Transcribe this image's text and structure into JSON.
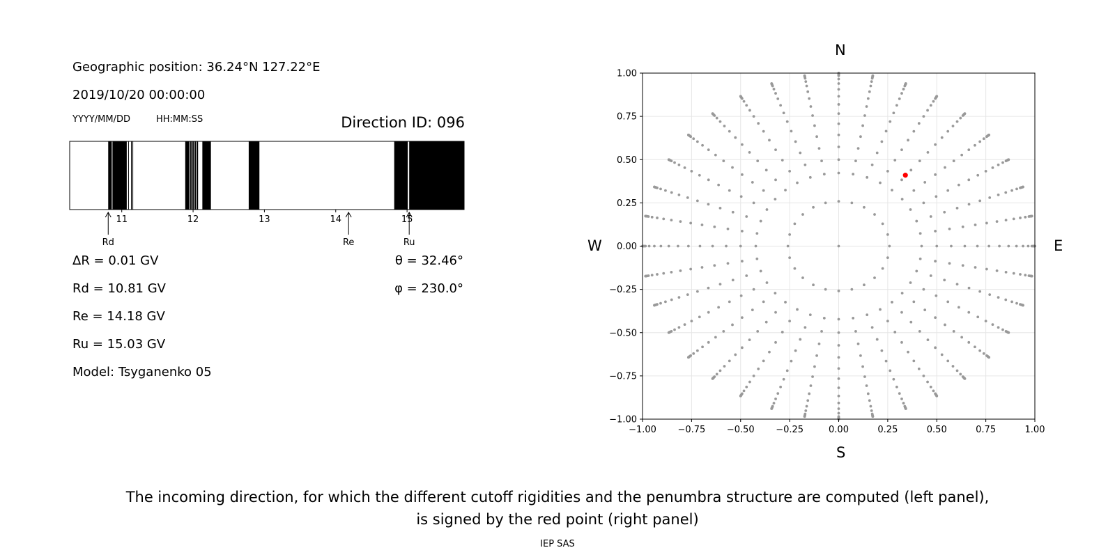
{
  "left_panel": {
    "position_line": "Geographic position: 36.24°N 127.22°E",
    "datetime_line": "2019/10/20 00:00:00",
    "date_format_label": "YYYY/MM/DD",
    "time_format_label": "HH:MM:SS",
    "direction_id": "Direction ID: 096",
    "params_left": [
      "ΔR = 0.01 GV",
      "Rd = 10.81 GV",
      "Re = 14.18 GV",
      "Ru = 15.03 GV",
      "Model: Tsyganenko 05"
    ],
    "params_right": [
      "θ = 32.46°",
      "φ = 230.0°"
    ]
  },
  "right_panel": {
    "north_label": "N",
    "south_label": "S",
    "west_label": "W",
    "east_label": "E"
  },
  "caption_line1": "The incoming direction, for which the different cutoff rigidities and the penumbra structure are computed (left panel),",
  "caption_line2": "is signed by the red point (right panel)",
  "credit": "IEP SAS",
  "chart_data": [
    {
      "type": "bar",
      "description": "penumbra structure (black = forbidden, white = allowed)",
      "xlim": [
        10.27,
        15.8
      ],
      "xticks": [
        11,
        12,
        13,
        14,
        15
      ],
      "tick_labels": [
        "11",
        "12",
        "13",
        "14",
        "15"
      ],
      "forbidden_bands": [
        [
          10.81,
          10.86
        ],
        [
          10.87,
          11.07
        ],
        [
          11.09,
          11.1
        ],
        [
          11.13,
          11.14
        ],
        [
          11.15,
          11.16
        ],
        [
          11.89,
          11.95
        ],
        [
          11.96,
          11.98
        ],
        [
          11.99,
          12.01
        ],
        [
          12.02,
          12.04
        ],
        [
          12.05,
          12.07
        ],
        [
          12.13,
          12.25
        ],
        [
          12.78,
          12.93
        ],
        [
          14.82,
          15.01
        ],
        [
          15.03,
          15.8
        ]
      ],
      "markers": [
        {
          "label": "Rd",
          "value": 10.81
        },
        {
          "label": "Re",
          "value": 14.18
        },
        {
          "label": "Ru",
          "value": 15.03
        }
      ]
    },
    {
      "type": "scatter",
      "xlim": [
        -1.0,
        1.0
      ],
      "ylim": [
        -1.0,
        1.0
      ],
      "xticks": [
        -1.0,
        -0.75,
        -0.5,
        -0.25,
        0.0,
        0.25,
        0.5,
        0.75,
        1.0
      ],
      "yticks": [
        -1.0,
        -0.75,
        -0.5,
        -0.25,
        0.0,
        0.25,
        0.5,
        0.75,
        1.0
      ],
      "xtick_labels": [
        "−1.00",
        "−0.75",
        "−0.50",
        "−0.25",
        "0.00",
        "0.25",
        "0.50",
        "0.75",
        "1.00"
      ],
      "ytick_labels": [
        "−1.00",
        "−0.75",
        "−0.50",
        "−0.25",
        "0.00",
        "0.25",
        "0.50",
        "0.75",
        "1.00"
      ],
      "grid": true,
      "grid_color": "#e6e6e6",
      "point_color": "#999999",
      "center": {
        "x": 0.0,
        "y": 0.0
      },
      "rings": [
        {
          "theta_deg": 15,
          "count": 24
        },
        {
          "theta_deg": 25,
          "count": 36
        },
        {
          "theta_deg": 30,
          "count": 36
        },
        {
          "theta_deg": 35,
          "count": 36
        },
        {
          "theta_deg": 40,
          "count": 36
        },
        {
          "theta_deg": 45,
          "count": 36
        },
        {
          "theta_deg": 50,
          "count": 36
        },
        {
          "theta_deg": 55,
          "count": 36
        },
        {
          "theta_deg": 60,
          "count": 36
        },
        {
          "theta_deg": 65,
          "count": 36
        },
        {
          "theta_deg": 70,
          "count": 36
        },
        {
          "theta_deg": 75,
          "count": 36
        },
        {
          "theta_deg": 80,
          "count": 36
        },
        {
          "theta_deg": 82,
          "count": 36
        },
        {
          "theta_deg": 84,
          "count": 36
        },
        {
          "theta_deg": 86,
          "count": 36
        },
        {
          "theta_deg": 88,
          "count": 36
        },
        {
          "theta_deg": 90,
          "count": 36
        }
      ],
      "highlight": {
        "x": 0.34,
        "y": 0.41,
        "color": "#ff0000"
      }
    }
  ]
}
